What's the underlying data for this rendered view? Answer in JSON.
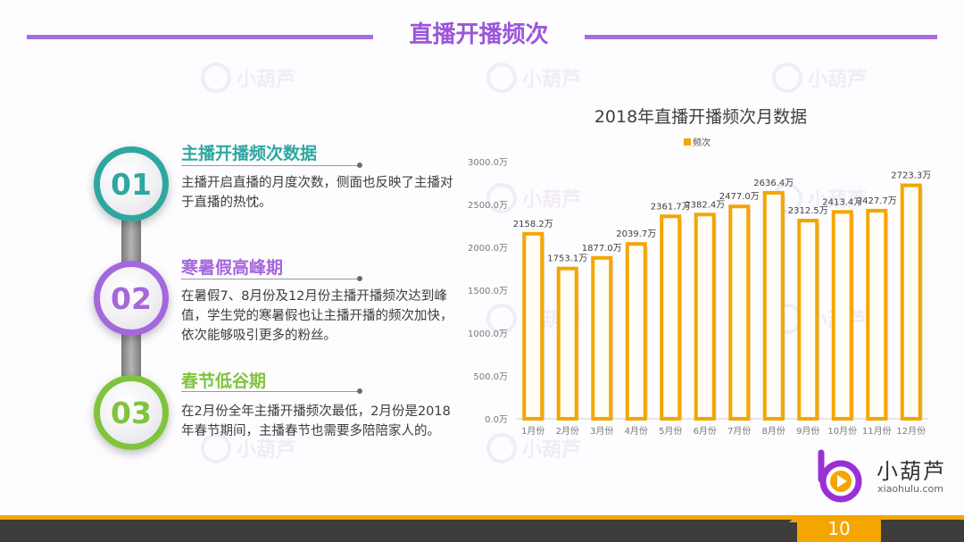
{
  "slide": {
    "title": "直播开播频次",
    "page_number": "10"
  },
  "items": [
    {
      "number": "01",
      "heading": "主播开播频次数据",
      "text": "主播开启直播的月度次数，侧面也反映了主播对于直播的热忱。"
    },
    {
      "number": "02",
      "heading": "寒暑假高峰期",
      "text": "在暑假7、8月份及12月份主播开播频次达到峰值，学生党的寒暑假也让主播开播的频次加快，依次能够吸引更多的粉丝。"
    },
    {
      "number": "03",
      "heading": "春节低谷期",
      "text": "在2月份全年主播开播频次最低，2月份是2018年春节期间，主播春节也需要多陪陪家人的。"
    }
  ],
  "chart_data": {
    "type": "bar",
    "title": "2018年直播开播频次月数据",
    "legend": "频次",
    "legend_position": "top",
    "categories": [
      "1月份",
      "2月份",
      "3月份",
      "4月份",
      "5月份",
      "6月份",
      "7月份",
      "8月份",
      "9月份",
      "10月份",
      "11月份",
      "12月份"
    ],
    "values": [
      2158.2,
      1753.1,
      1877.0,
      2039.7,
      2361.7,
      2382.4,
      2477.0,
      2636.4,
      2312.5,
      2413.4,
      2427.7,
      2723.3
    ],
    "data_labels": [
      "2158.2万",
      "1753.1万",
      "1877.0万",
      "2039.7万",
      "2361.7万",
      "2382.4万",
      "2477.0万",
      "2636.4万",
      "2312.5万",
      "2413.4万",
      "2427.7万",
      "2723.3万"
    ],
    "ylim": [
      0,
      3000
    ],
    "yticks": [
      "0.0万",
      "500.0万",
      "1000.0万",
      "1500.0万",
      "2000.0万",
      "2500.0万",
      "3000.0万"
    ],
    "bar_color": "#f5a500",
    "grid": false
  },
  "brand": {
    "name": "小葫芦",
    "url": "xiaohulu.com",
    "watermark": "小葫芦"
  },
  "colors": {
    "accent_purple": "#a467dc",
    "teal": "#2ea7a0",
    "green": "#7fc43c",
    "orange": "#f5a500"
  }
}
